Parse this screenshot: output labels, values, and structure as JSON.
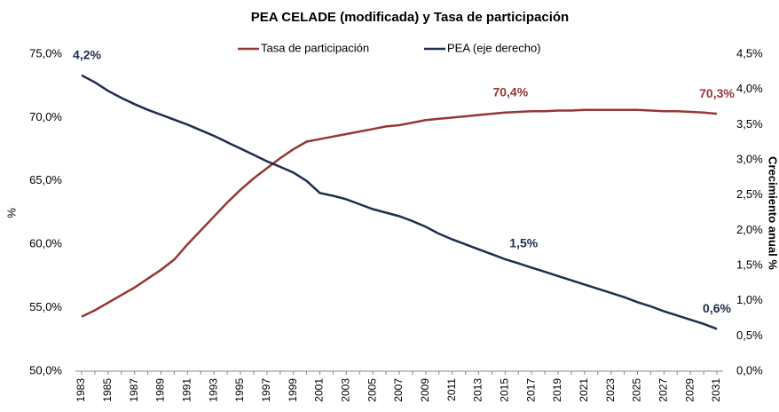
{
  "chart_data": {
    "type": "line",
    "title": "PEA CELADE (modificada) y Tasa de participación",
    "ylabel": "%",
    "y2label": "Crecimiento anual %",
    "categories": [
      "1983",
      null,
      "1985",
      null,
      "1987",
      null,
      "1989",
      null,
      "1991",
      null,
      "1993",
      null,
      "1995",
      null,
      "1997",
      null,
      "1999",
      null,
      "2001",
      null,
      "2003",
      null,
      "2005",
      null,
      "2007",
      null,
      "2009",
      null,
      "2011",
      null,
      "2013",
      null,
      "2015",
      null,
      "2017",
      null,
      "2019",
      null,
      "2021",
      null,
      "2023",
      null,
      "2025",
      null,
      "2027",
      null,
      "2029",
      null,
      "2031"
    ],
    "series": [
      {
        "name": "Tasa de participación",
        "color": "#953735",
        "axis": "y",
        "values": [
          54.3,
          54.8,
          55.4,
          56.0,
          56.6,
          57.3,
          58.0,
          58.8,
          60.0,
          61.1,
          62.2,
          63.3,
          64.3,
          65.2,
          66.0,
          66.8,
          67.5,
          68.1,
          68.3,
          68.5,
          68.7,
          68.9,
          69.1,
          69.3,
          69.4,
          69.6,
          69.8,
          69.9,
          70.0,
          70.1,
          70.2,
          70.3,
          70.4,
          70.45,
          70.5,
          70.5,
          70.55,
          70.55,
          70.6,
          70.6,
          70.6,
          70.6,
          70.6,
          70.55,
          70.5,
          70.5,
          70.45,
          70.4,
          70.3
        ],
        "value_labels": [
          null,
          null,
          null,
          null,
          null,
          null,
          null,
          null,
          null,
          null,
          null,
          null,
          null,
          null,
          null,
          null,
          null,
          null,
          null,
          null,
          null,
          null,
          null,
          null,
          null,
          null,
          null,
          null,
          null,
          null,
          null,
          null,
          "70,4%",
          null,
          null,
          null,
          null,
          null,
          null,
          null,
          null,
          null,
          null,
          null,
          null,
          null,
          null,
          null,
          "70,3%"
        ]
      },
      {
        "name": "PEA (eje derecho)",
        "color": "#1f2d4e",
        "axis": "y2",
        "values": [
          4.2,
          4.1,
          3.98,
          3.88,
          3.79,
          3.71,
          3.64,
          3.57,
          3.5,
          3.42,
          3.34,
          3.25,
          3.16,
          3.07,
          2.98,
          2.9,
          2.82,
          2.7,
          2.53,
          2.49,
          2.44,
          2.37,
          2.3,
          2.25,
          2.2,
          2.13,
          2.05,
          1.95,
          1.87,
          1.8,
          1.73,
          1.66,
          1.59,
          1.53,
          1.47,
          1.41,
          1.35,
          1.29,
          1.23,
          1.17,
          1.11,
          1.05,
          0.98,
          0.92,
          0.85,
          0.79,
          0.73,
          0.67,
          0.6
        ],
        "value_labels": [
          "4,2%",
          null,
          null,
          null,
          null,
          null,
          null,
          null,
          null,
          null,
          null,
          null,
          null,
          null,
          null,
          null,
          null,
          null,
          null,
          null,
          null,
          null,
          null,
          null,
          null,
          null,
          null,
          null,
          null,
          null,
          null,
          null,
          null,
          "1,5%",
          null,
          null,
          null,
          null,
          null,
          null,
          null,
          null,
          null,
          null,
          null,
          null,
          null,
          null,
          "0,6%"
        ]
      }
    ],
    "ylim": [
      50,
      75
    ],
    "yticks": [
      {
        "value": 50,
        "label": "50,0%"
      },
      {
        "value": 55,
        "label": "55,0%"
      },
      {
        "value": 60,
        "label": "60,0%"
      },
      {
        "value": 65,
        "label": "65,0%"
      },
      {
        "value": 70,
        "label": "70,0%"
      },
      {
        "value": 75,
        "label": "75,0%"
      }
    ],
    "y2lim": [
      0,
      4.5
    ],
    "y2ticks": [
      {
        "value": 0,
        "label": "0,0%"
      },
      {
        "value": 0.5,
        "label": "0,5%"
      },
      {
        "value": 1,
        "label": "1,0%"
      },
      {
        "value": 1.5,
        "label": "1,5%"
      },
      {
        "value": 2,
        "label": "2,0%"
      },
      {
        "value": 2.5,
        "label": "2,5%"
      },
      {
        "value": 3,
        "label": "3,0%"
      },
      {
        "value": 3.5,
        "label": "3,5%"
      },
      {
        "value": 4,
        "label": "4,0%"
      },
      {
        "value": 4.5,
        "label": "4,5%"
      }
    ],
    "grid": false,
    "legend": "top"
  }
}
